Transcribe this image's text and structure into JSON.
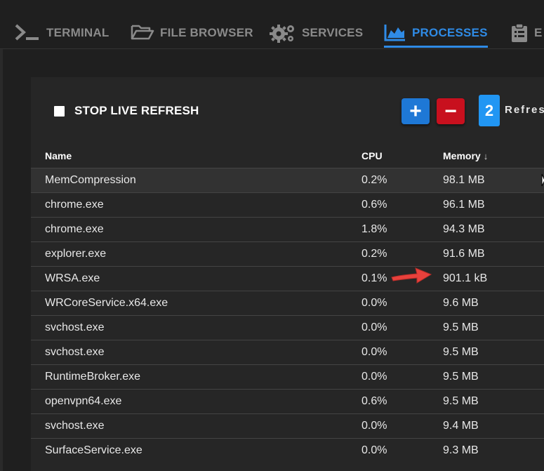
{
  "tabs": [
    {
      "label": "TERMINAL",
      "icon": "terminal-icon"
    },
    {
      "label": "FILE BROWSER",
      "icon": "folder-open-icon"
    },
    {
      "label": "SERVICES",
      "icon": "gears-icon"
    },
    {
      "label": "PROCESSES",
      "icon": "area-chart-icon",
      "active": true
    },
    {
      "label": "E",
      "icon": "clipboard-list-icon"
    }
  ],
  "toolbar": {
    "live_refresh_label": "STOP LIVE REFRESH",
    "plus_label": "+",
    "minus_label": "−",
    "interval_value": "2",
    "refresh_label": "Refresh"
  },
  "table": {
    "headers": {
      "name": "Name",
      "cpu": "CPU",
      "memory": "Memory",
      "sort_arrow": "↓"
    },
    "rows": [
      {
        "name": "MemCompression",
        "cpu": "0.2%",
        "memory": "98.1 MB"
      },
      {
        "name": "chrome.exe",
        "cpu": "0.6%",
        "memory": "96.1 MB"
      },
      {
        "name": "chrome.exe",
        "cpu": "1.8%",
        "memory": "94.3 MB"
      },
      {
        "name": "explorer.exe",
        "cpu": "0.2%",
        "memory": "91.6 MB"
      },
      {
        "name": "WRSA.exe",
        "cpu": "0.1%",
        "memory": "901.1 kB"
      },
      {
        "name": "WRCoreService.x64.exe",
        "cpu": "0.0%",
        "memory": "9.6 MB"
      },
      {
        "name": "svchost.exe",
        "cpu": "0.0%",
        "memory": "9.5 MB"
      },
      {
        "name": "svchost.exe",
        "cpu": "0.0%",
        "memory": "9.5 MB"
      },
      {
        "name": "RuntimeBroker.exe",
        "cpu": "0.0%",
        "memory": "9.5 MB"
      },
      {
        "name": "openvpn64.exe",
        "cpu": "0.6%",
        "memory": "9.5 MB"
      },
      {
        "name": "svchost.exe",
        "cpu": "0.0%",
        "memory": "9.4 MB"
      },
      {
        "name": "SurfaceService.exe",
        "cpu": "0.0%",
        "memory": "9.3 MB"
      }
    ]
  },
  "colors": {
    "accent": "#2f8be6",
    "plus_button": "#1e78d6",
    "minus_button": "#c8101e",
    "annotation_arrow": "#e8413c"
  }
}
